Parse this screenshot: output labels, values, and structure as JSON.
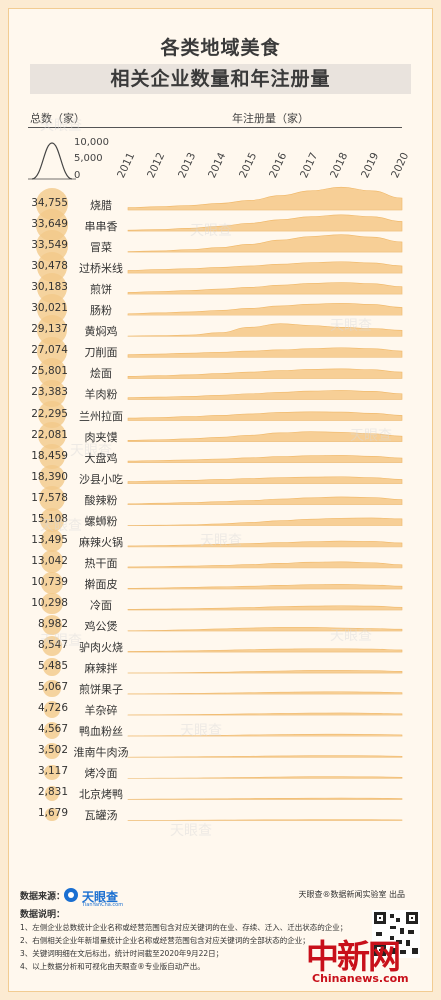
{
  "title_line1": "各类地域美食",
  "title_line2": "相关企业数量和年注册量",
  "header": {
    "left": "总数（家）",
    "right": "年注册量（家）"
  },
  "legend": {
    "labels": [
      "10,000",
      "5,000",
      "0"
    ]
  },
  "watermark": "天眼查",
  "chart_data": {
    "type": "area",
    "x": [
      2011,
      2012,
      2013,
      2014,
      2015,
      2016,
      2017,
      2018,
      2019,
      2020
    ],
    "ylim": [
      0,
      10000
    ],
    "series": [
      {
        "name": "烧腊",
        "total": "34,755",
        "total_value": 34755,
        "values": [
          800,
          1100,
          1500,
          2200,
          3200,
          4800,
          6400,
          7600,
          6400,
          4000
        ]
      },
      {
        "name": "串串香",
        "total": "33,649",
        "total_value": 33649,
        "values": [
          300,
          500,
          900,
          1600,
          2600,
          3800,
          4800,
          5400,
          4800,
          3200
        ]
      },
      {
        "name": "冒菜",
        "total": "33,549",
        "total_value": 33549,
        "values": [
          200,
          400,
          800,
          1500,
          2600,
          4000,
          5200,
          5800,
          5000,
          3400
        ]
      },
      {
        "name": "过桥米线",
        "total": "30,478",
        "total_value": 30478,
        "values": [
          900,
          1200,
          1500,
          1900,
          2400,
          3000,
          3500,
          3800,
          3400,
          2400
        ]
      },
      {
        "name": "煎饼",
        "total": "30,183",
        "total_value": 30183,
        "values": [
          600,
          900,
          1200,
          1700,
          2300,
          3000,
          3600,
          3900,
          3500,
          2500
        ]
      },
      {
        "name": "肠粉",
        "total": "30,021",
        "total_value": 30021,
        "values": [
          500,
          800,
          1100,
          1600,
          2300,
          3100,
          3700,
          4000,
          3600,
          2600
        ]
      },
      {
        "name": "黄焖鸡",
        "total": "29,137",
        "total_value": 29137,
        "values": [
          100,
          200,
          400,
          1200,
          3000,
          4200,
          3600,
          3000,
          2600,
          2000
        ]
      },
      {
        "name": "刀削面",
        "total": "27,074",
        "total_value": 27074,
        "values": [
          900,
          1100,
          1400,
          1700,
          2100,
          2500,
          2900,
          3200,
          2900,
          2100
        ]
      },
      {
        "name": "烩面",
        "total": "25,801",
        "total_value": 25801,
        "values": [
          700,
          900,
          1200,
          1600,
          2100,
          2600,
          3000,
          3200,
          2900,
          2100
        ]
      },
      {
        "name": "羊肉粉",
        "total": "23,383",
        "total_value": 23383,
        "values": [
          600,
          800,
          1000,
          1400,
          1900,
          2400,
          2800,
          3000,
          2700,
          1900
        ]
      },
      {
        "name": "兰州拉面",
        "total": "22,295",
        "total_value": 22295,
        "values": [
          800,
          1000,
          1300,
          1700,
          2200,
          2700,
          2900,
          2800,
          2400,
          1700
        ]
      },
      {
        "name": "肉夹馍",
        "total": "22,081",
        "total_value": 22081,
        "values": [
          400,
          600,
          900,
          1400,
          2100,
          2900,
          3300,
          3100,
          2600,
          1800
        ]
      },
      {
        "name": "大盘鸡",
        "total": "18,459",
        "total_value": 18459,
        "values": [
          500,
          700,
          900,
          1200,
          1600,
          2000,
          2300,
          2400,
          2100,
          1500
        ]
      },
      {
        "name": "沙县小吃",
        "total": "18,390",
        "total_value": 18390,
        "values": [
          700,
          900,
          1100,
          1400,
          1700,
          2000,
          2200,
          2300,
          2000,
          1400
        ]
      },
      {
        "name": "酸辣粉",
        "total": "17,578",
        "total_value": 17578,
        "values": [
          300,
          500,
          700,
          1000,
          1400,
          1900,
          2300,
          2600,
          2400,
          1700
        ]
      },
      {
        "name": "螺蛳粉",
        "total": "15,108",
        "total_value": 15108,
        "values": [
          100,
          200,
          300,
          600,
          1100,
          1700,
          2200,
          2500,
          2600,
          2300
        ]
      },
      {
        "name": "麻辣火锅",
        "total": "13,495",
        "total_value": 13495,
        "values": [
          300,
          400,
          600,
          800,
          1100,
          1400,
          1700,
          1900,
          1800,
          1300
        ]
      },
      {
        "name": "热干面",
        "total": "13,042",
        "total_value": 13042,
        "values": [
          300,
          400,
          600,
          800,
          1100,
          1500,
          1900,
          2000,
          1700,
          1000
        ]
      },
      {
        "name": "擀面皮",
        "total": "10,739",
        "total_value": 10739,
        "values": [
          200,
          300,
          500,
          700,
          900,
          1200,
          1400,
          1500,
          1300,
          900
        ]
      },
      {
        "name": "冷面",
        "total": "10,298",
        "total_value": 10298,
        "values": [
          200,
          300,
          400,
          600,
          800,
          1100,
          1300,
          1400,
          1300,
          900
        ]
      },
      {
        "name": "鸡公煲",
        "total": "8,982",
        "total_value": 8982,
        "values": [
          100,
          200,
          400,
          700,
          1000,
          1200,
          1200,
          1000,
          800,
          600
        ]
      },
      {
        "name": "驴肉火烧",
        "total": "8,547",
        "total_value": 8547,
        "values": [
          200,
          300,
          400,
          600,
          800,
          1000,
          1100,
          1100,
          1000,
          700
        ]
      },
      {
        "name": "麻辣拌",
        "total": "5,485",
        "total_value": 5485,
        "values": [
          50,
          100,
          200,
          300,
          500,
          700,
          900,
          900,
          800,
          600
        ]
      },
      {
        "name": "煎饼果子",
        "total": "5,067",
        "total_value": 5067,
        "values": [
          100,
          150,
          250,
          350,
          500,
          650,
          750,
          800,
          700,
          500
        ]
      },
      {
        "name": "羊杂碎",
        "total": "4,726",
        "total_value": 4726,
        "values": [
          100,
          150,
          200,
          300,
          450,
          600,
          700,
          750,
          650,
          450
        ]
      },
      {
        "name": "鸭血粉丝",
        "total": "4,567",
        "total_value": 4567,
        "values": [
          100,
          150,
          200,
          300,
          450,
          550,
          650,
          700,
          600,
          450
        ]
      },
      {
        "name": "淮南牛肉汤",
        "total": "3,502",
        "total_value": 3502,
        "values": [
          50,
          100,
          150,
          250,
          350,
          450,
          550,
          550,
          500,
          350
        ]
      },
      {
        "name": "烤冷面",
        "total": "3,117",
        "total_value": 3117,
        "values": [
          20,
          50,
          100,
          200,
          300,
          450,
          550,
          550,
          500,
          350
        ]
      },
      {
        "name": "北京烤鸭",
        "total": "2,831",
        "total_value": 2831,
        "values": [
          50,
          100,
          150,
          200,
          300,
          350,
          400,
          450,
          400,
          300
        ]
      },
      {
        "name": "瓦罐汤",
        "total": "1,679",
        "total_value": 1679,
        "values": [
          30,
          50,
          80,
          120,
          180,
          220,
          250,
          260,
          240,
          180
        ]
      }
    ]
  },
  "footer": {
    "source_label": "数据来源：",
    "brand_name": "天眼查",
    "brand_sub": "TianYanCha.com",
    "credit": "天眼查®数据新闻实验室 出品",
    "notes_title": "数据说明：",
    "notes": [
      "1、左侧企业总数统计企业名称或经营范围包含对应关键词的在业、存续、迁入、迁出状态的企业；",
      "2、右侧相关企业年新增量统计企业名称或经营范围包含对应关键词的全部状态的企业；",
      "3、关键词明细在文后标出，统计时间截至2020年9月22日；",
      "4、以上数据分析和可视化由天眼查®专业版自动产出。"
    ],
    "cn_logo": "中新网",
    "cn_url": "Chinanews.com"
  },
  "colors": {
    "area": "#f6c886",
    "bubble": "#f3c98a",
    "accent": "#1a6fd1",
    "red": "#c8101a"
  }
}
